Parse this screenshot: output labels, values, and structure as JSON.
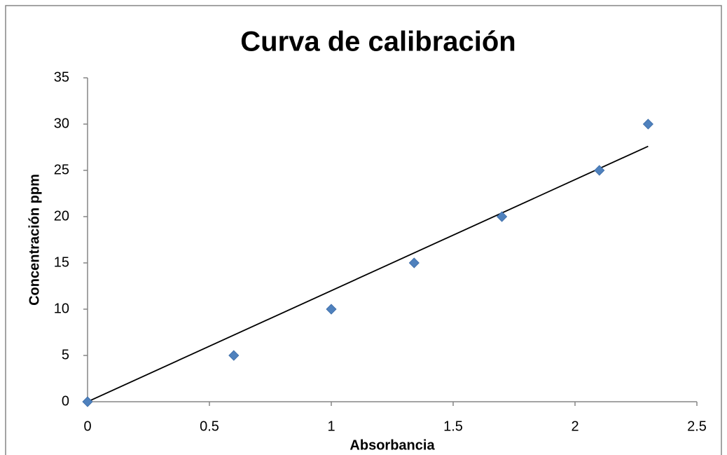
{
  "chart_data": {
    "type": "scatter",
    "title": "Curva de calibración",
    "x_label": "Absorbancia",
    "y_label": "Concentración ppm",
    "series": [
      {
        "name": "Concentración ppm",
        "color": "#4f81bd",
        "x": [
          0,
          0.6,
          1.0,
          1.34,
          1.7,
          2.1,
          2.3
        ],
        "values": [
          0,
          5,
          10,
          15,
          20,
          25,
          30
        ]
      }
    ],
    "trendline": {
      "color": "#000000",
      "x": [
        0,
        2.3
      ],
      "values": [
        0,
        27.6
      ]
    },
    "xlim": [
      0,
      2.5
    ],
    "xticks": [
      0,
      0.5,
      1,
      1.5,
      2,
      2.5
    ],
    "ylim": [
      0,
      35
    ],
    "yticks": [
      0,
      5,
      10,
      15,
      20,
      25,
      30,
      35
    ]
  }
}
